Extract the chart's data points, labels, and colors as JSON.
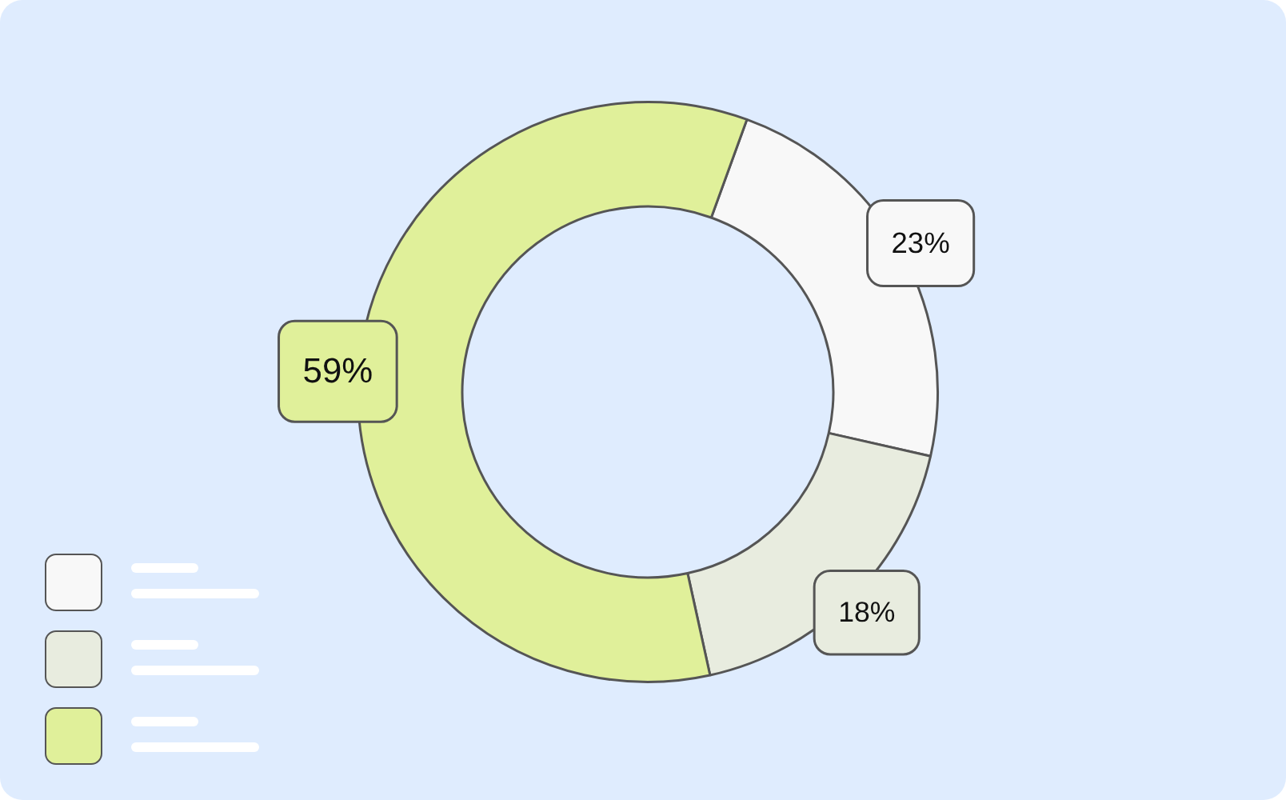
{
  "chart_data": {
    "type": "donut",
    "categories": [
      null,
      null,
      null
    ],
    "values": [
      23,
      18,
      59
    ],
    "colors": [
      "#f8f8f8",
      "#e8ecdf",
      "#e0f09a"
    ],
    "value_labels": [
      "23%",
      "18%",
      "59%"
    ]
  }
}
